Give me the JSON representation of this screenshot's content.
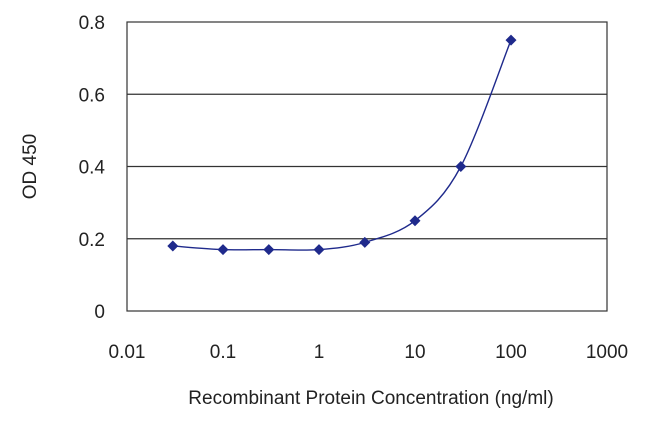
{
  "chart_data": {
    "type": "line",
    "title": "",
    "xlabel": "Recombinant Protein Concentration (ng/ml)",
    "ylabel": "OD 450",
    "x_scale": "log",
    "xlim": [
      0.01,
      1000
    ],
    "ylim": [
      0,
      0.8
    ],
    "x_ticks": [
      0.01,
      0.1,
      1,
      10,
      100,
      1000
    ],
    "x_tick_labels": [
      "0.01",
      "0.1",
      "1",
      "10",
      "100",
      "1000"
    ],
    "y_ticks": [
      0,
      0.2,
      0.4,
      0.6,
      0.8
    ],
    "y_tick_labels": [
      "0",
      "0.2",
      "0.4",
      "0.6",
      "0.8"
    ],
    "grid": "horizontal",
    "legend": "none",
    "series": [
      {
        "color": "#1f2a8c",
        "points": [
          {
            "x": 0.03,
            "y": 0.18
          },
          {
            "x": 0.1,
            "y": 0.17
          },
          {
            "x": 0.3,
            "y": 0.17
          },
          {
            "x": 1,
            "y": 0.17
          },
          {
            "x": 3,
            "y": 0.19
          },
          {
            "x": 10,
            "y": 0.25
          },
          {
            "x": 30,
            "y": 0.4
          },
          {
            "x": 100,
            "y": 0.75
          }
        ]
      }
    ]
  }
}
